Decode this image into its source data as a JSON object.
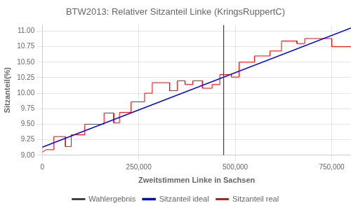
{
  "chart_data": {
    "type": "line",
    "title": "BTW2013: Relativer Sitzanteil Linke (KringsRuppertC)",
    "x_label": "Zweitstimmen Linke in Sachsen",
    "y_label": "Sitzanteil(%)",
    "xlim": [
      0,
      800000
    ],
    "ylim": [
      9.0,
      11.1
    ],
    "xticks": [
      0,
      {
        "value": 250000,
        "label": "250,000"
      },
      {
        "value": 500000,
        "label": "500,000"
      },
      {
        "value": 750000,
        "label": "750,000"
      }
    ],
    "yticks": [
      {
        "value": 9.0,
        "label": "9.00"
      },
      9.25,
      {
        "value": 9.5,
        "label": "9.50"
      },
      9.75,
      {
        "value": 10.0,
        "label": "10.00"
      },
      10.25,
      {
        "value": 10.5,
        "label": "10.50"
      },
      10.75,
      {
        "value": 11.0,
        "label": "11.00"
      }
    ],
    "grid": true,
    "legend": "bottom",
    "series": [
      {
        "name": "Sitzanteil real",
        "color": "#ff0000",
        "x": [
          0,
          10000,
          30000,
          30000,
          60000,
          60000,
          75000,
          75000,
          110000,
          110000,
          160000,
          160000,
          185000,
          185000,
          200000,
          200000,
          230000,
          230000,
          265000,
          265000,
          285000,
          285000,
          310000,
          330000,
          330000,
          350000,
          350000,
          370000,
          370000,
          390000,
          390000,
          415000,
          415000,
          440000,
          440000,
          460000,
          460000,
          490000,
          490000,
          510000,
          510000,
          550000,
          550000,
          590000,
          590000,
          620000,
          620000,
          660000,
          660000,
          680000,
          680000,
          750000,
          750000,
          800000
        ],
        "values": [
          9.05,
          9.09,
          9.09,
          9.3,
          9.3,
          9.14,
          9.14,
          9.33,
          9.33,
          9.5,
          9.5,
          9.68,
          9.68,
          9.52,
          9.52,
          9.69,
          9.69,
          9.86,
          9.86,
          10.0,
          10.0,
          10.17,
          10.17,
          10.17,
          10.04,
          10.04,
          10.2,
          10.2,
          10.14,
          10.14,
          10.2,
          10.2,
          10.08,
          10.08,
          10.14,
          10.14,
          10.3,
          10.3,
          10.26,
          10.26,
          10.5,
          10.5,
          10.6,
          10.6,
          10.68,
          10.68,
          10.84,
          10.84,
          10.8,
          10.8,
          10.88,
          10.88,
          10.75,
          10.75
        ]
      },
      {
        "name": "Sitzanteil ideal",
        "color": "#0000ff",
        "x": [
          0,
          800000
        ],
        "values": [
          9.13,
          11.05
        ]
      },
      {
        "name": "Wahlergebnis",
        "color": "#404040",
        "vline": 470000
      }
    ]
  }
}
